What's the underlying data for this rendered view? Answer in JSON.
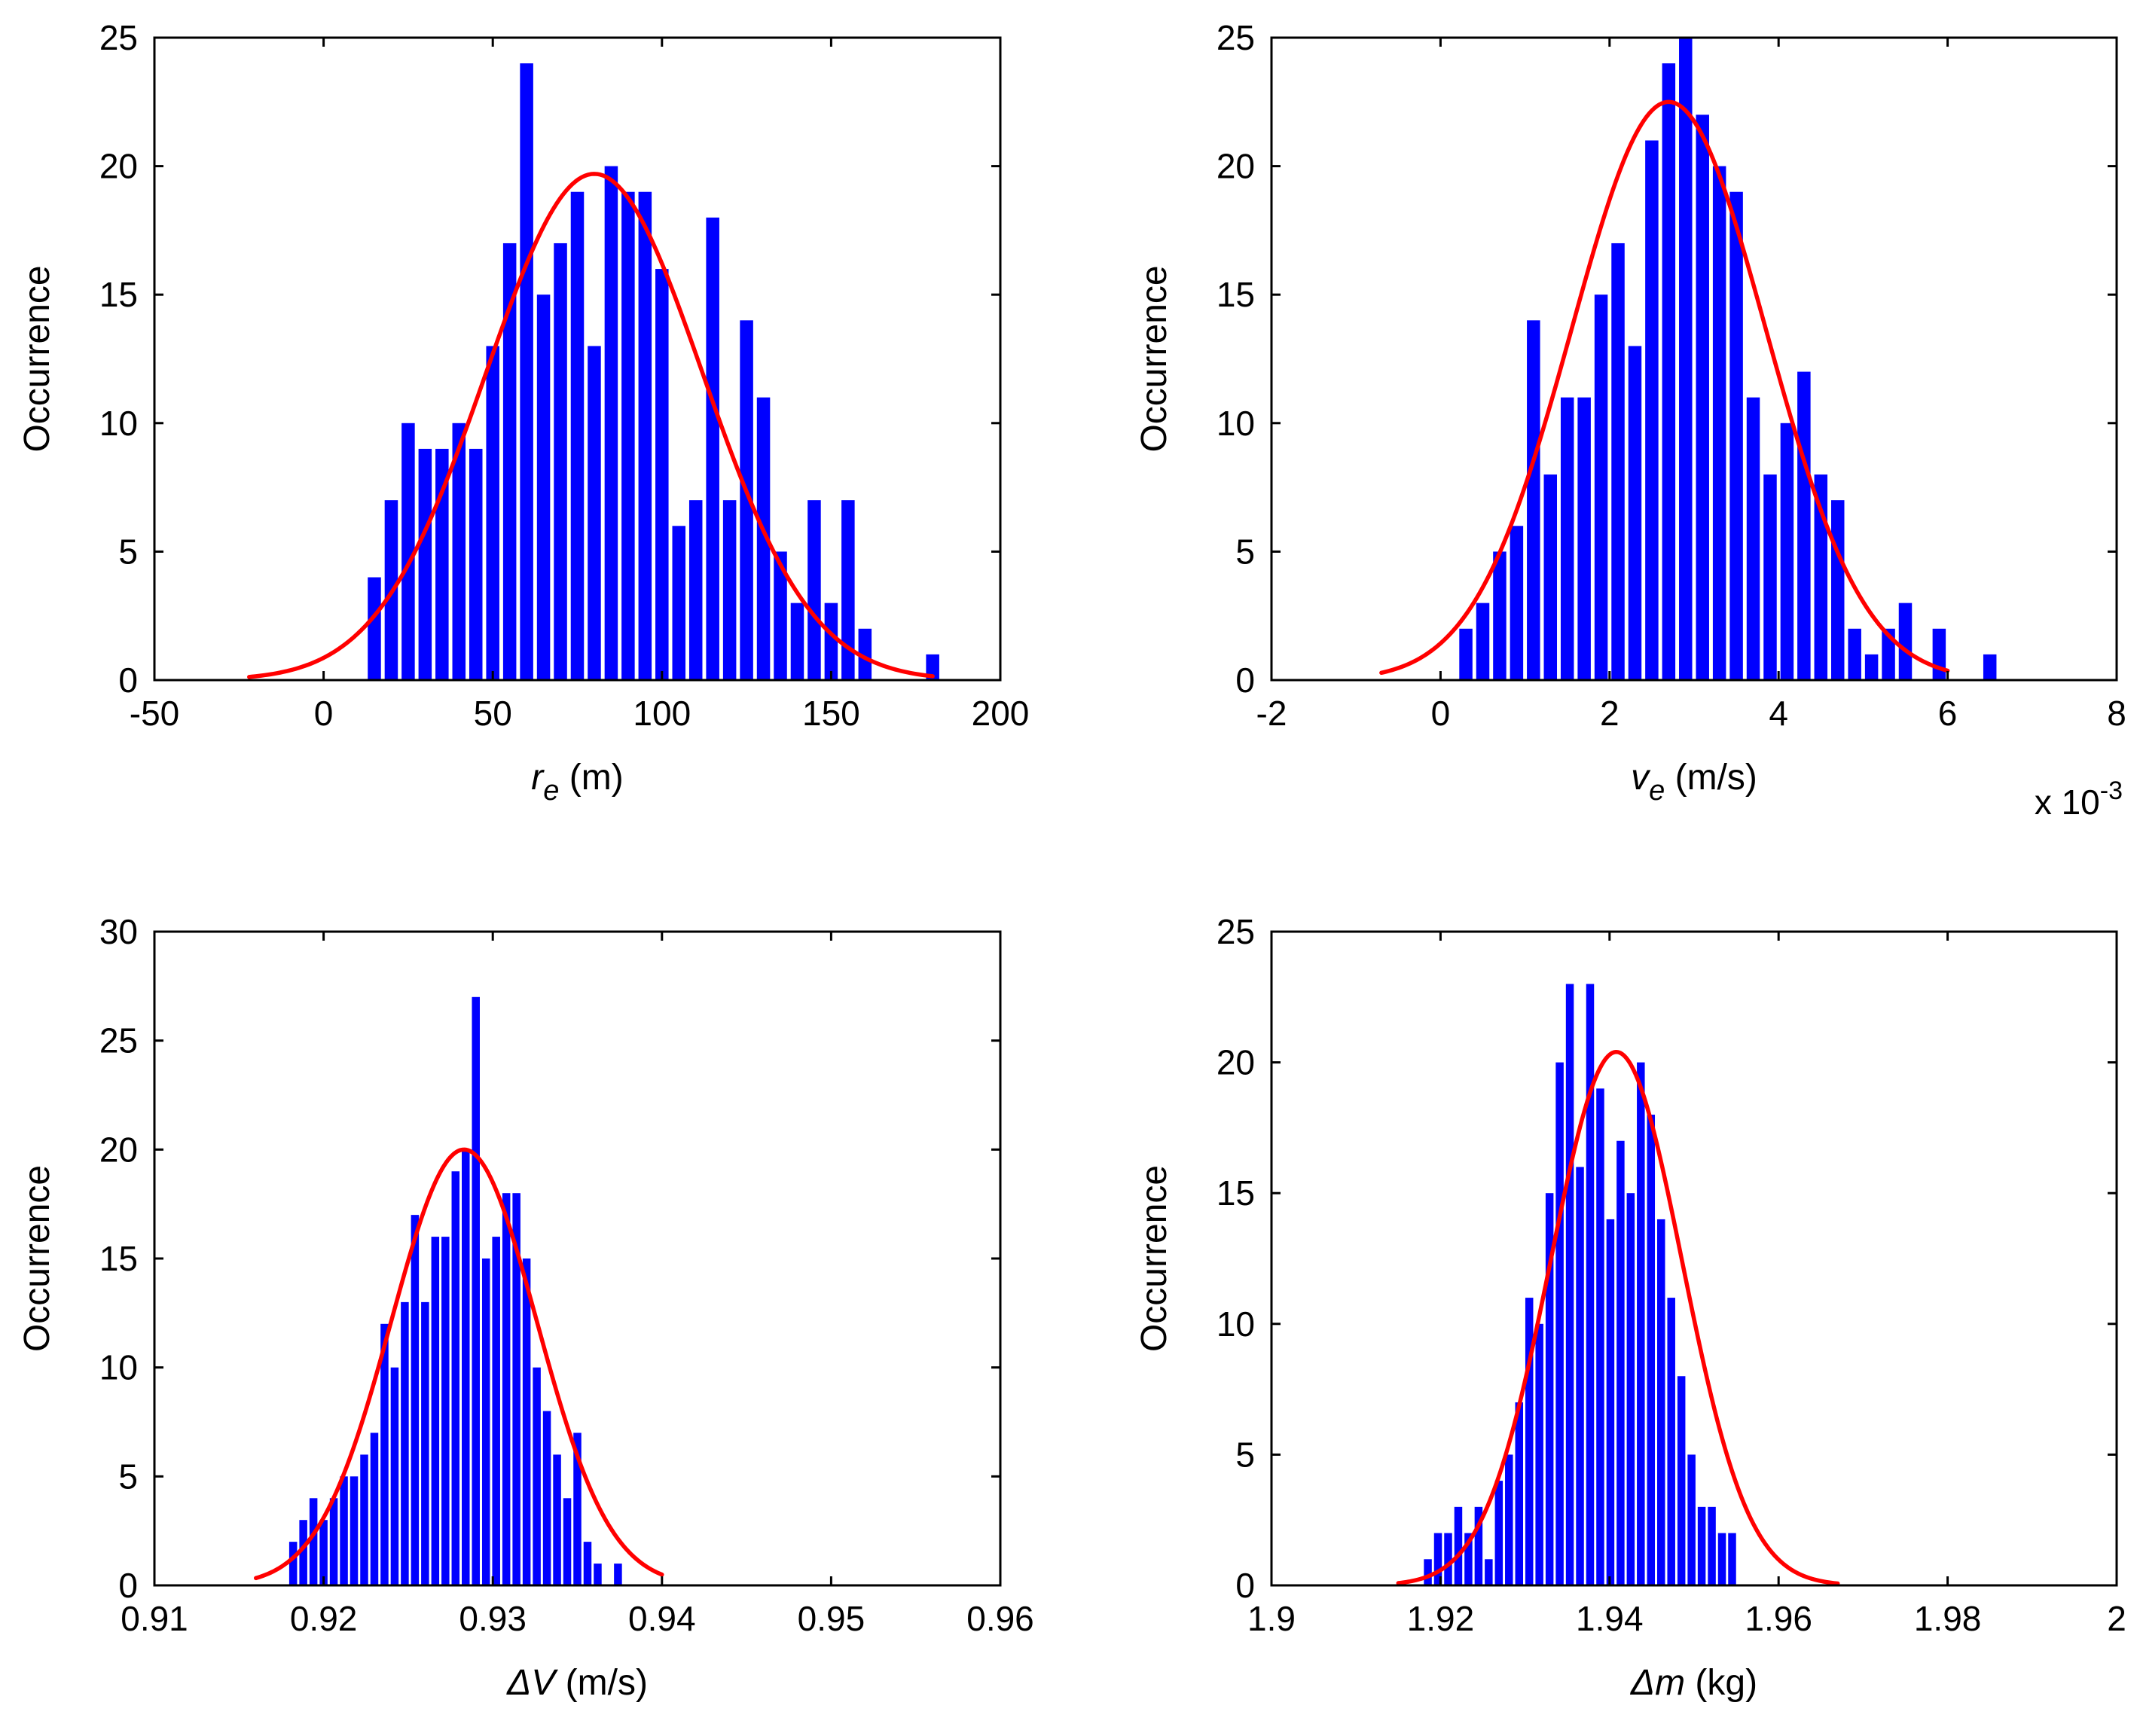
{
  "chart_data": [
    {
      "type": "bar",
      "overlay": "normal-fit-curve",
      "title": "",
      "xlabel": {
        "symbol": "r",
        "sub": "e",
        "unit": " (m)"
      },
      "ylabel": "Occurrence",
      "xlim": [
        -50,
        200
      ],
      "ylim": [
        0,
        25
      ],
      "xticks": [
        "-50",
        "0",
        "50",
        "100",
        "150",
        "200"
      ],
      "yticks": [
        "0",
        "5",
        "10",
        "15",
        "20",
        "25"
      ],
      "bin_width": 5,
      "bins": [
        [
          15,
          4
        ],
        [
          20,
          7
        ],
        [
          25,
          10
        ],
        [
          30,
          9
        ],
        [
          35,
          9
        ],
        [
          40,
          10
        ],
        [
          45,
          9
        ],
        [
          50,
          13
        ],
        [
          55,
          17
        ],
        [
          60,
          24
        ],
        [
          65,
          15
        ],
        [
          70,
          17
        ],
        [
          75,
          19
        ],
        [
          80,
          13
        ],
        [
          85,
          20
        ],
        [
          90,
          19
        ],
        [
          95,
          19
        ],
        [
          100,
          16
        ],
        [
          105,
          6
        ],
        [
          110,
          7
        ],
        [
          115,
          18
        ],
        [
          120,
          7
        ],
        [
          125,
          14
        ],
        [
          130,
          11
        ],
        [
          135,
          5
        ],
        [
          140,
          3
        ],
        [
          145,
          7
        ],
        [
          150,
          3
        ],
        [
          155,
          7
        ],
        [
          160,
          2
        ],
        [
          180,
          1
        ]
      ],
      "fit": {
        "mean": 80,
        "sd": 32,
        "peak": 19.7,
        "x_from": -22,
        "x_to": 180
      },
      "colors": {
        "bars": "#0000ff",
        "fit": "#ff0000"
      }
    },
    {
      "type": "bar",
      "overlay": "normal-fit-curve",
      "title": "",
      "xlabel": {
        "symbol": "v",
        "sub": "e",
        "unit": " (m/s)"
      },
      "ylabel": "Occurrence",
      "xlim": [
        -2,
        8
      ],
      "ylim": [
        0,
        25
      ],
      "xticks": [
        "-2",
        "0",
        "2",
        "4",
        "6",
        "8"
      ],
      "yticks": [
        "0",
        "5",
        "10",
        "15",
        "20",
        "25"
      ],
      "multiplier": {
        "base": "x 10",
        "exponent": "-3"
      },
      "bin_width": 0.2,
      "bins": [
        [
          0.3,
          2
        ],
        [
          0.5,
          3
        ],
        [
          0.7,
          5
        ],
        [
          0.9,
          6
        ],
        [
          1.1,
          14
        ],
        [
          1.3,
          8
        ],
        [
          1.5,
          11
        ],
        [
          1.7,
          11
        ],
        [
          1.9,
          15
        ],
        [
          2.1,
          17
        ],
        [
          2.3,
          13
        ],
        [
          2.5,
          21
        ],
        [
          2.7,
          24
        ],
        [
          2.9,
          25
        ],
        [
          3.1,
          22
        ],
        [
          3.3,
          20
        ],
        [
          3.5,
          19
        ],
        [
          3.7,
          11
        ],
        [
          3.9,
          8
        ],
        [
          4.1,
          10
        ],
        [
          4.3,
          12
        ],
        [
          4.5,
          8
        ],
        [
          4.7,
          7
        ],
        [
          4.9,
          2
        ],
        [
          5.1,
          1
        ],
        [
          5.3,
          2
        ],
        [
          5.5,
          3
        ],
        [
          5.9,
          2
        ],
        [
          6.5,
          1
        ]
      ],
      "fit": {
        "mean": 2.7,
        "sd": 1.15,
        "peak": 22.5,
        "x_from": -0.7,
        "x_to": 6
      },
      "colors": {
        "bars": "#0000ff",
        "fit": "#ff0000"
      }
    },
    {
      "type": "bar",
      "overlay": "normal-fit-curve",
      "title": "",
      "xlabel": {
        "symbol": "ΔV",
        "sub": "",
        "unit": " (m/s)"
      },
      "ylabel": "Occurrence",
      "xlim": [
        0.91,
        0.96
      ],
      "ylim": [
        0,
        30
      ],
      "xticks": [
        "0.91",
        "0.92",
        "0.93",
        "0.94",
        "0.95",
        "0.96"
      ],
      "yticks": [
        "0",
        "5",
        "10",
        "15",
        "20",
        "25",
        "30"
      ],
      "bin_width": 0.0006,
      "bins": [
        [
          0.9182,
          2
        ],
        [
          0.9188,
          3
        ],
        [
          0.9194,
          4
        ],
        [
          0.92,
          3
        ],
        [
          0.9206,
          4
        ],
        [
          0.9212,
          5
        ],
        [
          0.9218,
          5
        ],
        [
          0.9224,
          6
        ],
        [
          0.923,
          7
        ],
        [
          0.9236,
          12
        ],
        [
          0.9242,
          10
        ],
        [
          0.9248,
          13
        ],
        [
          0.9254,
          17
        ],
        [
          0.926,
          13
        ],
        [
          0.9266,
          16
        ],
        [
          0.9272,
          16
        ],
        [
          0.9278,
          19
        ],
        [
          0.9284,
          20
        ],
        [
          0.929,
          27
        ],
        [
          0.9296,
          15
        ],
        [
          0.9302,
          16
        ],
        [
          0.9308,
          18
        ],
        [
          0.9314,
          18
        ],
        [
          0.932,
          15
        ],
        [
          0.9326,
          10
        ],
        [
          0.9332,
          8
        ],
        [
          0.9338,
          6
        ],
        [
          0.9344,
          4
        ],
        [
          0.935,
          7
        ],
        [
          0.9356,
          2
        ],
        [
          0.9362,
          1
        ],
        [
          0.9374,
          1
        ]
      ],
      "fit": {
        "mean": 0.9283,
        "sd": 0.0043,
        "peak": 20,
        "x_from": 0.916,
        "x_to": 0.94
      },
      "colors": {
        "bars": "#0000ff",
        "fit": "#ff0000"
      }
    },
    {
      "type": "bar",
      "overlay": "normal-fit-curve",
      "title": "",
      "xlabel": {
        "symbol": "Δm",
        "sub": "",
        "unit": " (kg)"
      },
      "ylabel": "Occurrence",
      "xlim": [
        1.9,
        2.0
      ],
      "ylim": [
        0,
        25
      ],
      "xticks": [
        "1.9",
        "1.92",
        "1.94",
        "1.96",
        "1.98",
        "2"
      ],
      "yticks": [
        "0",
        "5",
        "10",
        "15",
        "20",
        "25"
      ],
      "bin_width": 0.0012,
      "bins": [
        [
          1.9185,
          1
        ],
        [
          1.9197,
          2
        ],
        [
          1.9209,
          2
        ],
        [
          1.9221,
          3
        ],
        [
          1.9233,
          2
        ],
        [
          1.9245,
          3
        ],
        [
          1.9257,
          1
        ],
        [
          1.9269,
          4
        ],
        [
          1.9281,
          5
        ],
        [
          1.9293,
          7
        ],
        [
          1.9305,
          11
        ],
        [
          1.9317,
          10
        ],
        [
          1.9329,
          15
        ],
        [
          1.9341,
          20
        ],
        [
          1.9353,
          23
        ],
        [
          1.9365,
          16
        ],
        [
          1.9377,
          23
        ],
        [
          1.9389,
          19
        ],
        [
          1.9401,
          14
        ],
        [
          1.9413,
          17
        ],
        [
          1.9425,
          15
        ],
        [
          1.9437,
          20
        ],
        [
          1.9449,
          18
        ],
        [
          1.9461,
          14
        ],
        [
          1.9473,
          11
        ],
        [
          1.9485,
          8
        ],
        [
          1.9497,
          5
        ],
        [
          1.9509,
          3
        ],
        [
          1.9521,
          3
        ],
        [
          1.9533,
          2
        ],
        [
          1.9545,
          2
        ]
      ],
      "fit": {
        "mean": 1.9408,
        "sd": 0.0078,
        "peak": 20.4,
        "x_from": 1.915,
        "x_to": 1.967
      },
      "colors": {
        "bars": "#0000ff",
        "fit": "#ff0000"
      }
    }
  ]
}
